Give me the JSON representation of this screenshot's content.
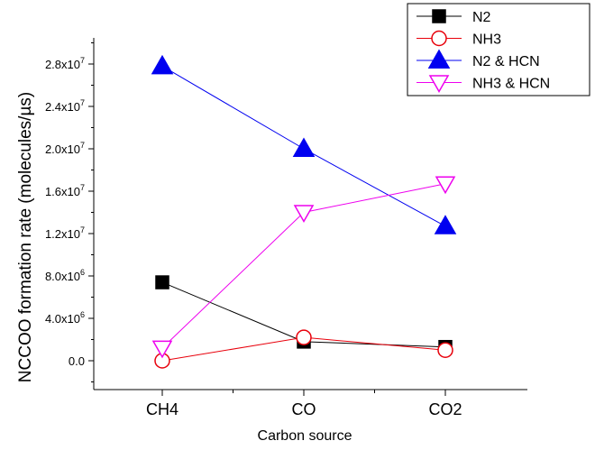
{
  "chart_data": {
    "type": "line",
    "title": "",
    "xlabel": "Carbon source",
    "ylabel": "NCCOO formation rate (molecules/µs)",
    "categories": [
      "CH4",
      "CO",
      "CO2"
    ],
    "ylim": [
      -1500000,
      30500000
    ],
    "yticks": [
      {
        "value": 0,
        "mantissa": "0.0",
        "exp": ""
      },
      {
        "value": 4000000,
        "mantissa": "4.0x10",
        "exp": "6"
      },
      {
        "value": 8000000,
        "mantissa": "8.0x10",
        "exp": "6"
      },
      {
        "value": 12000000,
        "mantissa": "1.2x10",
        "exp": "7"
      },
      {
        "value": 16000000,
        "mantissa": "1.6x10",
        "exp": "7"
      },
      {
        "value": 20000000,
        "mantissa": "2.0x10",
        "exp": "7"
      },
      {
        "value": 24000000,
        "mantissa": "2.4x10",
        "exp": "7"
      },
      {
        "value": 28000000,
        "mantissa": "2.8x10",
        "exp": "7"
      }
    ],
    "grid": false,
    "legend_position": "top-right",
    "series": [
      {
        "name": "N2",
        "marker": "square",
        "filled": true,
        "color": "#000000",
        "values": [
          7400000,
          1800000,
          1300000
        ]
      },
      {
        "name": "NH3",
        "marker": "circle",
        "filled": false,
        "color": "#e8000b",
        "values": [
          0,
          2200000,
          1000000
        ]
      },
      {
        "name": "N2 & HCN",
        "marker": "triangle-up",
        "filled": true,
        "color": "#0000f0",
        "values": [
          27800000,
          20000000,
          12700000
        ]
      },
      {
        "name": "NH3 & HCN",
        "marker": "triangle-down",
        "filled": false,
        "color": "#ee00ee",
        "values": [
          1200000,
          14000000,
          16700000
        ]
      }
    ]
  }
}
